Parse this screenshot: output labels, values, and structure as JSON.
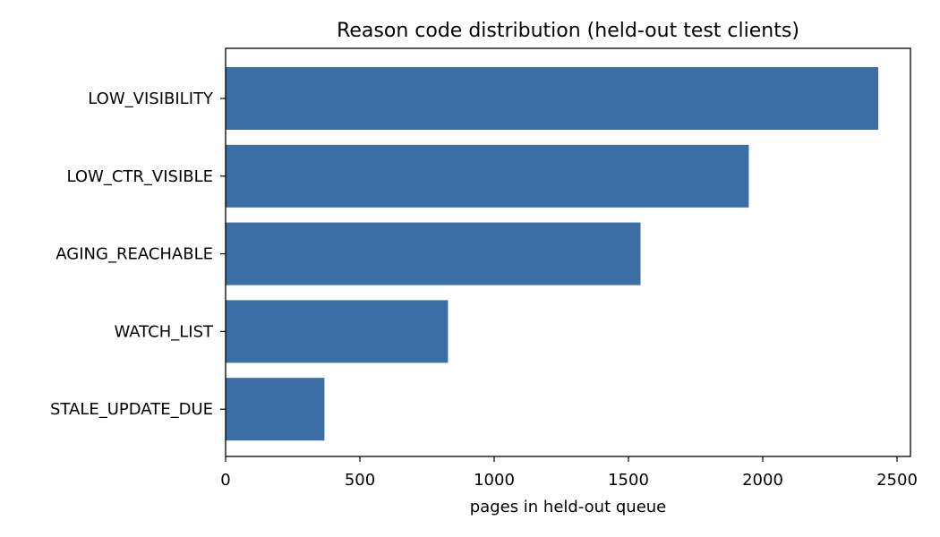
{
  "chart_data": {
    "type": "bar",
    "orientation": "horizontal",
    "title": "Reason code distribution (held-out test clients)",
    "xlabel": "pages in held-out queue",
    "ylabel": "",
    "categories": [
      "LOW_VISIBILITY",
      "LOW_CTR_VISIBLE",
      "AGING_REACHABLE",
      "WATCH_LIST",
      "STALE_UPDATE_DUE"
    ],
    "values": [
      2430,
      1948,
      1545,
      828,
      368
    ],
    "xlim": [
      0,
      2550
    ],
    "xticks": [
      0,
      500,
      1000,
      1500,
      2000,
      2500
    ],
    "bar_color": "#3a6ea5",
    "grid": false,
    "legend": "none"
  }
}
